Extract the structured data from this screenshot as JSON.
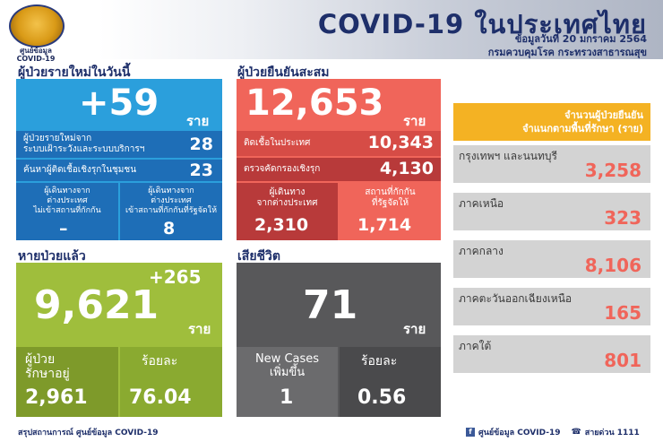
{
  "header": {
    "seal_label": "ศูนย์ข้อมูล\nCOVID-19",
    "title": "COVID-19 ในประเทศไทย",
    "date_line": "ข้อมูลวันที่ 20 มกราคม 2564",
    "agency_line": "กรมควบคุมโรค กระทรวงสาธารณสุข"
  },
  "new_cases": {
    "section_label": "ผู้ป่วยรายใหม่ในวันนี้",
    "total": "+59",
    "unit": "ราย",
    "row1_label": "ผู้ป่วยรายใหม่จาก\nระบบเฝ้าระวังและระบบบริการฯ",
    "row1_value": "28",
    "row2_label": "ค้นหาผู้ติดเชื้อเชิงรุกในชุมชน",
    "row2_value": "23",
    "row3a_label": "ผู้เดินทางจาก\nต่างประเทศ\nไม่เข้าสถานที่กักกัน",
    "row3a_value": "–",
    "row3b_label": "ผู้เดินทางจาก\nต่างประเทศ\nเข้าสถานที่กักกันที่รัฐจัดให้",
    "row3b_value": "8"
  },
  "cumulative": {
    "section_label": "ผู้ป่วยยืนยันสะสม",
    "total": "12,653",
    "unit": "ราย",
    "row1_label": "ติดเชื้อในประเทศ",
    "row1_value": "10,343",
    "row2_label": "ตรวจคัดกรองเชิงรุก",
    "row2_value": "4,130",
    "row3a_label": "ผู้เดินทาง\nจากต่างประเทศ",
    "row3a_value": "2,310",
    "row3b_label": "สถานที่กักกัน\nที่รัฐจัดให้",
    "row3b_value": "1,714"
  },
  "recovered": {
    "section_label": "หายป่วยแล้ว",
    "increase": "+265",
    "total": "9,621",
    "unit": "ราย",
    "in_treatment_label": "ผู้ป่วย\nรักษาอยู่",
    "in_treatment_value": "2,961",
    "percent_label": "ร้อยละ",
    "percent_value": "76.04"
  },
  "deaths": {
    "section_label": "เสียชีวิต",
    "total": "71",
    "unit": "ราย",
    "new_label": "New Cases\nเพิ่มขึ้น",
    "new_value": "1",
    "percent_label": "ร้อยละ",
    "percent_value": "0.56"
  },
  "regions": {
    "heading": "จำนวนผู้ป่วยยืนยัน\nจำแนกตามพื้นที่รักษา (ราย)",
    "items": [
      {
        "name": "กรุงเทพฯ และนนทบุรี",
        "value": "3,258"
      },
      {
        "name": "ภาคเหนือ",
        "value": "323"
      },
      {
        "name": "ภาคกลาง",
        "value": "8,106"
      },
      {
        "name": "ภาคตะวันออกเฉียงเหนือ",
        "value": "165"
      },
      {
        "name": "ภาคใต้",
        "value": "801"
      }
    ]
  },
  "footer": {
    "left": "สรุปสถานการณ์ ศูนย์ข้อมูล COVID-19",
    "facebook": "ศูนย์ข้อมูล COVID-19",
    "hotline": "สายด่วน 1111"
  },
  "colors": {
    "blue": "#2b9fdc",
    "blue_dark": "#1e6eb7",
    "red": "#f0655a",
    "red_dark": "#b83a3a",
    "green": "#9fbe3c",
    "gray": "#58585a",
    "orange": "#f4b223",
    "navy": "#1e2f6a"
  }
}
